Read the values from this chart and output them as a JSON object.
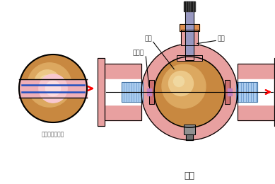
{
  "title": "球阀",
  "left_label": "球体俧视剑面图",
  "labels": {
    "qiuti": "球体",
    "fagan": "阀杆",
    "mifengzuo": "密封座"
  },
  "colors": {
    "pink_body": "#E8A0A0",
    "pink_dark": "#D08080",
    "orange_ball_outer": "#C88840",
    "orange_ball_mid": "#DCA860",
    "orange_ball_light": "#ECC888",
    "orange_ball_lighter": "#F0D8A0",
    "blue_bg": "#AACCEE",
    "blue_stripe": "#6090C8",
    "gray_stem": "#9898C0",
    "white": "#FFFFFF",
    "black": "#000000",
    "red_arrow": "#FF0000",
    "bg": "#FFFFFF",
    "orange_top": "#E09050",
    "dark_gray": "#404040",
    "pink_seal": "#CC7070",
    "small_gray": "#909090"
  },
  "figsize": [
    3.89,
    2.6
  ],
  "dpi": 100
}
